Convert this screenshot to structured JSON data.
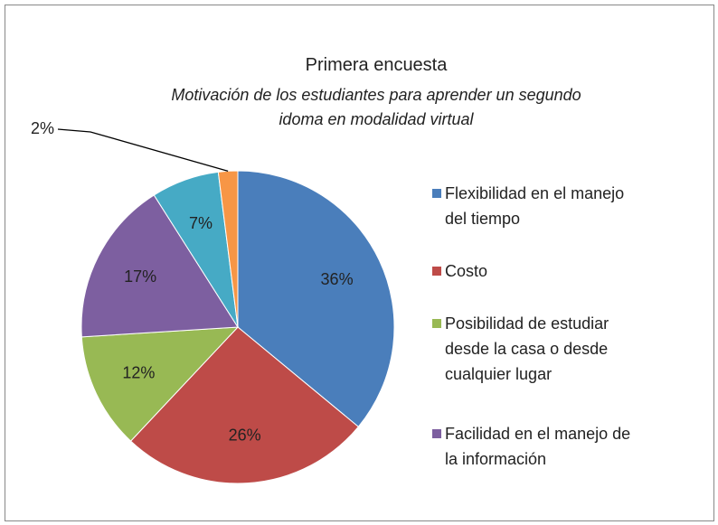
{
  "chart_data": {
    "type": "pie",
    "title": "Primera encuesta",
    "subtitle": "Motivación de los estudiantes para aprender un segundo idoma en modalidad virtual",
    "categories": [
      "Flexibilidad en el manejo del tiempo",
      "Costo",
      "Posibilidad de estudiar desde la casa o desde cualquier lugar",
      "Facilidad en el manejo de la información",
      null,
      null
    ],
    "values": [
      36,
      26,
      12,
      17,
      7,
      2
    ],
    "value_labels": [
      "36%",
      "26%",
      "12%",
      "17%",
      "7%",
      "2%"
    ],
    "colors": [
      "#4a7ebb",
      "#be4b48",
      "#98b954",
      "#7d5fa0",
      "#46aac5",
      "#f79646"
    ],
    "legend": "right"
  }
}
